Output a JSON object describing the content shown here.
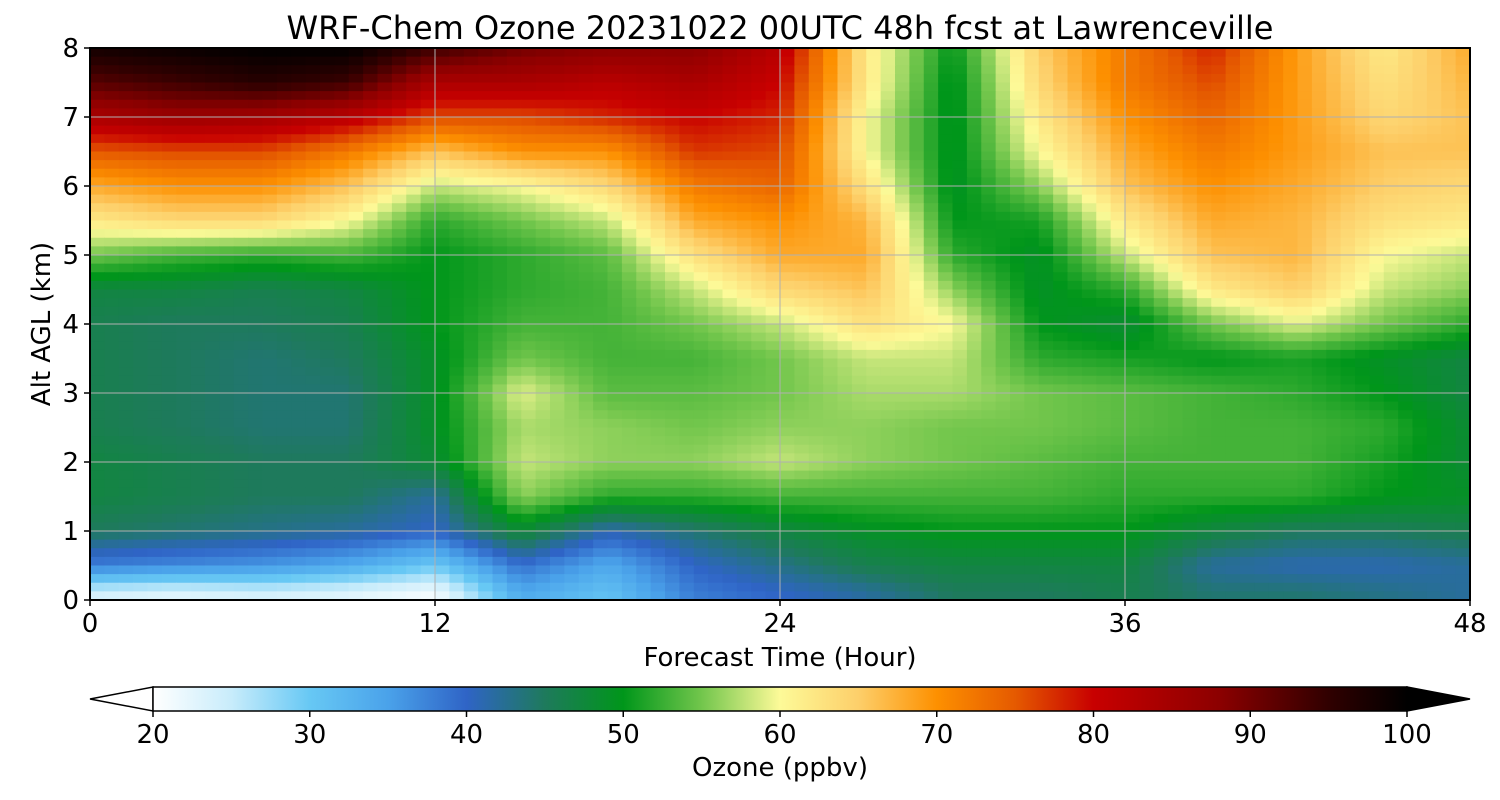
{
  "chart_data": {
    "type": "heatmap",
    "title": "WRF-Chem Ozone  20231022 00UTC 48h fcst at Lawrenceville",
    "xlabel": "Forecast Time (Hour)",
    "ylabel": "Alt AGL (km)",
    "xlim": [
      0,
      48
    ],
    "ylim": [
      0,
      8
    ],
    "x_ticks": [
      0,
      12,
      24,
      36,
      48
    ],
    "y_ticks": [
      0,
      1,
      2,
      3,
      4,
      5,
      6,
      7,
      8
    ],
    "grid": true,
    "x": [
      0,
      3,
      6,
      9,
      12,
      15,
      18,
      21,
      24,
      27,
      30,
      33,
      36,
      39,
      42,
      45,
      48
    ],
    "y": [
      0.1,
      0.5,
      1,
      1.5,
      2,
      2.5,
      3,
      3.5,
      4,
      4.5,
      5,
      5.5,
      6,
      6.5,
      7,
      7.5,
      8
    ],
    "z": [
      [
        24,
        23,
        24,
        23,
        21,
        34,
        31,
        38,
        40,
        42,
        45,
        45,
        46,
        44,
        44,
        43,
        42
      ],
      [
        38,
        37,
        36,
        34,
        30,
        39,
        34,
        40,
        43,
        46,
        47,
        47,
        47,
        42,
        41,
        41,
        42
      ],
      [
        45,
        44,
        43,
        42,
        40,
        48,
        41,
        44,
        47,
        49,
        50,
        50,
        50,
        47,
        45,
        45,
        46
      ],
      [
        47,
        46,
        45,
        45,
        42,
        56,
        52,
        52,
        53,
        53,
        53,
        53,
        52,
        52,
        52,
        50,
        49
      ],
      [
        47,
        46,
        45,
        45,
        48,
        58,
        56,
        56,
        58,
        56,
        55,
        54,
        53,
        53,
        53,
        51,
        48
      ],
      [
        46,
        45,
        44,
        44,
        49,
        57,
        56,
        55,
        56,
        56,
        55,
        55,
        54,
        53,
        53,
        52,
        48
      ],
      [
        46,
        45,
        44,
        44,
        49,
        59,
        54,
        54,
        55,
        57,
        57,
        55,
        54,
        53,
        52,
        50,
        47
      ],
      [
        46,
        45,
        44,
        45,
        49,
        55,
        53,
        53,
        55,
        58,
        58,
        52,
        51,
        50,
        51,
        49,
        47
      ],
      [
        46,
        45,
        45,
        46,
        50,
        53,
        53,
        55,
        58,
        63,
        60,
        50,
        48,
        55,
        59,
        55,
        52
      ],
      [
        47,
        47,
        46,
        47,
        50,
        52,
        53,
        58,
        64,
        66,
        56,
        49,
        52,
        62,
        65,
        58,
        56
      ],
      [
        55,
        53,
        52,
        53,
        50,
        52,
        54,
        63,
        68,
        68,
        52,
        49,
        58,
        66,
        67,
        60,
        58
      ],
      [
        62,
        64,
        64,
        60,
        52,
        55,
        58,
        68,
        70,
        67,
        50,
        51,
        62,
        68,
        67,
        63,
        62
      ],
      [
        68,
        70,
        70,
        66,
        58,
        60,
        64,
        72,
        74,
        63,
        49,
        56,
        66,
        70,
        68,
        65,
        64
      ],
      [
        75,
        76,
        76,
        72,
        66,
        70,
        70,
        77,
        76,
        60,
        49,
        60,
        68,
        72,
        69,
        66,
        66
      ],
      [
        84,
        86,
        85,
        82,
        76,
        76,
        78,
        80,
        78,
        60,
        49,
        62,
        70,
        74,
        69,
        64,
        66
      ],
      [
        92,
        94,
        96,
        94,
        84,
        84,
        82,
        84,
        80,
        62,
        49,
        64,
        72,
        76,
        69,
        63,
        67
      ],
      [
        98,
        99,
        100,
        100,
        94,
        90,
        88,
        88,
        82,
        62,
        50,
        65,
        72,
        78,
        69,
        62,
        68
      ]
    ],
    "colorbar": {
      "label": "Ozone  (ppbv)",
      "min": 20,
      "max": 100,
      "ticks": [
        20,
        30,
        40,
        50,
        60,
        70,
        80,
        90,
        100
      ],
      "extend": "both",
      "stops": [
        {
          "v": 20,
          "c": "#ffffff"
        },
        {
          "v": 25,
          "c": "#c8ecfb"
        },
        {
          "v": 30,
          "c": "#67c8f4"
        },
        {
          "v": 35,
          "c": "#4aa2ea"
        },
        {
          "v": 40,
          "c": "#2f64c6"
        },
        {
          "v": 45,
          "c": "#1e7a5c"
        },
        {
          "v": 50,
          "c": "#00961a"
        },
        {
          "v": 55,
          "c": "#72c64c"
        },
        {
          "v": 60,
          "c": "#fdfa98"
        },
        {
          "v": 65,
          "c": "#fdcf6a"
        },
        {
          "v": 70,
          "c": "#fd9000"
        },
        {
          "v": 75,
          "c": "#e55a00"
        },
        {
          "v": 80,
          "c": "#c80000"
        },
        {
          "v": 88,
          "c": "#8c0000"
        },
        {
          "v": 95,
          "c": "#300000"
        },
        {
          "v": 100,
          "c": "#000000"
        }
      ]
    }
  }
}
